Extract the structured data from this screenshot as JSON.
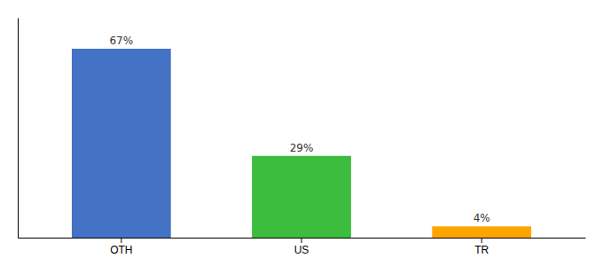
{
  "chart_data": {
    "type": "bar",
    "categories": [
      "OTH",
      "US",
      "TR"
    ],
    "values": [
      67,
      29,
      4
    ],
    "colors": [
      "#4472C4",
      "#3DBD3D",
      "#FFA500"
    ],
    "value_labels": [
      "67%",
      "29%",
      "4%"
    ],
    "data_labels": true,
    "ylim": [
      0,
      78
    ],
    "yticks": [],
    "tick_labels": "x",
    "grid": false
  }
}
